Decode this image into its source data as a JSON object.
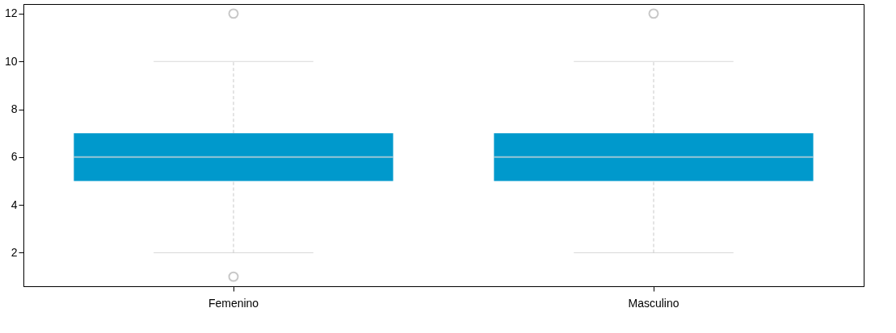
{
  "chart_data": {
    "type": "box",
    "categories": [
      "Femenino",
      "Masculino"
    ],
    "boxes": [
      {
        "low": 2,
        "q1": 5,
        "median": 6,
        "q3": 7,
        "high": 10,
        "outliers": [
          12,
          1
        ]
      },
      {
        "low": 2,
        "q1": 5,
        "median": 6,
        "q3": 7,
        "high": 10,
        "outliers": [
          12
        ]
      }
    ],
    "color": "#0099cc",
    "ylim": [
      0.6,
      12.4
    ],
    "yticks": [
      2,
      4,
      6,
      8,
      10,
      12
    ],
    "grid": false
  }
}
